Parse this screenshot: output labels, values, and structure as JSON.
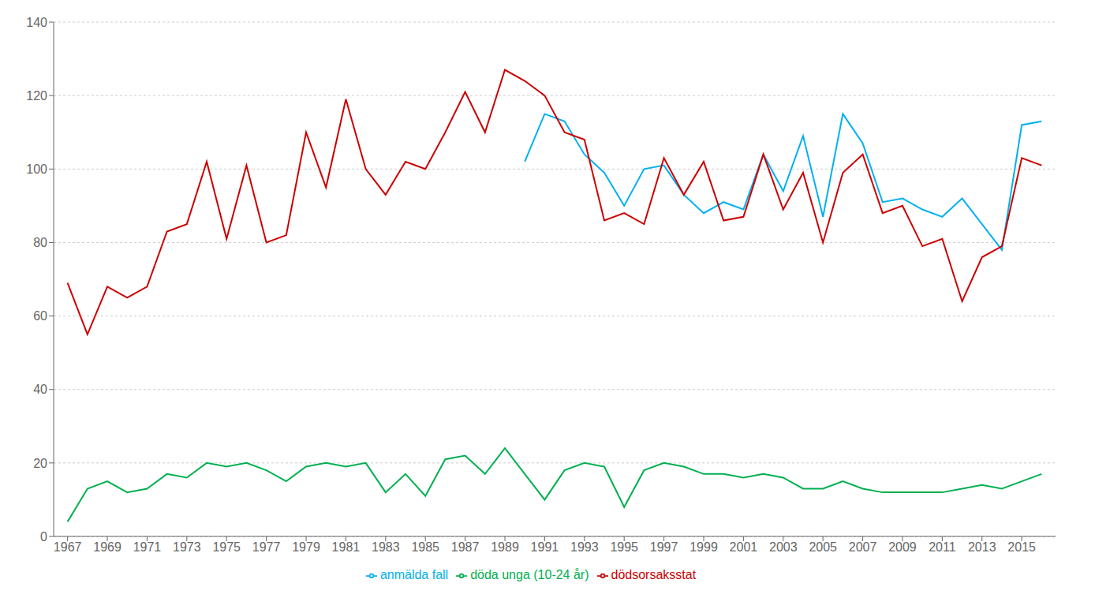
{
  "chart_data": {
    "type": "line",
    "x": [
      1967,
      1968,
      1969,
      1970,
      1971,
      1972,
      1973,
      1974,
      1975,
      1976,
      1977,
      1978,
      1979,
      1980,
      1981,
      1982,
      1983,
      1984,
      1985,
      1986,
      1987,
      1988,
      1989,
      1990,
      1991,
      1992,
      1993,
      1994,
      1995,
      1996,
      1997,
      1998,
      1999,
      2000,
      2001,
      2002,
      2003,
      2004,
      2005,
      2006,
      2007,
      2008,
      2009,
      2010,
      2011,
      2012,
      2013,
      2014,
      2015,
      2016
    ],
    "series": [
      {
        "name": "anmälda fall",
        "color": "#00b0f0",
        "values": [
          null,
          null,
          null,
          null,
          null,
          null,
          null,
          null,
          null,
          null,
          null,
          null,
          null,
          null,
          null,
          null,
          null,
          null,
          null,
          null,
          null,
          null,
          null,
          102,
          115,
          113,
          104,
          99,
          90,
          100,
          101,
          93,
          88,
          91,
          89,
          104,
          94,
          109,
          87,
          115,
          107,
          91,
          92,
          89,
          87,
          92,
          85,
          78,
          112,
          113
        ]
      },
      {
        "name": "dödsorsaksstat",
        "color": "#cc0000",
        "values": [
          69,
          55,
          68,
          65,
          68,
          83,
          85,
          102,
          81,
          101,
          80,
          82,
          110,
          95,
          119,
          100,
          93,
          102,
          100,
          110,
          121,
          110,
          127,
          124,
          120,
          110,
          108,
          86,
          88,
          85,
          103,
          93,
          102,
          86,
          87,
          104,
          89,
          99,
          80,
          99,
          104,
          88,
          90,
          79,
          81,
          64,
          76,
          79,
          103,
          101
        ]
      },
      {
        "name": "döda unga (10-24 år)",
        "color": "#00b050",
        "values": [
          4,
          13,
          15,
          12,
          13,
          17,
          16,
          20,
          19,
          20,
          18,
          15,
          19,
          20,
          19,
          20,
          12,
          17,
          11,
          21,
          22,
          17,
          24,
          17,
          10,
          18,
          20,
          19,
          8,
          18,
          20,
          19,
          17,
          17,
          16,
          17,
          16,
          13,
          13,
          15,
          13,
          12,
          12,
          12,
          12,
          13,
          14,
          13,
          15,
          17
        ]
      }
    ],
    "xlim": [
      1966.3,
      2016.7
    ],
    "xticks": [
      1967,
      1969,
      1971,
      1973,
      1975,
      1977,
      1979,
      1981,
      1983,
      1985,
      1987,
      1989,
      1991,
      1993,
      1995,
      1997,
      1999,
      2001,
      2003,
      2005,
      2007,
      2009,
      2011,
      2013,
      2015
    ],
    "ylim": [
      0,
      140
    ],
    "yticks": [
      0,
      20,
      40,
      60,
      80,
      100,
      120,
      140
    ],
    "grid": true,
    "legend": "bottom"
  }
}
